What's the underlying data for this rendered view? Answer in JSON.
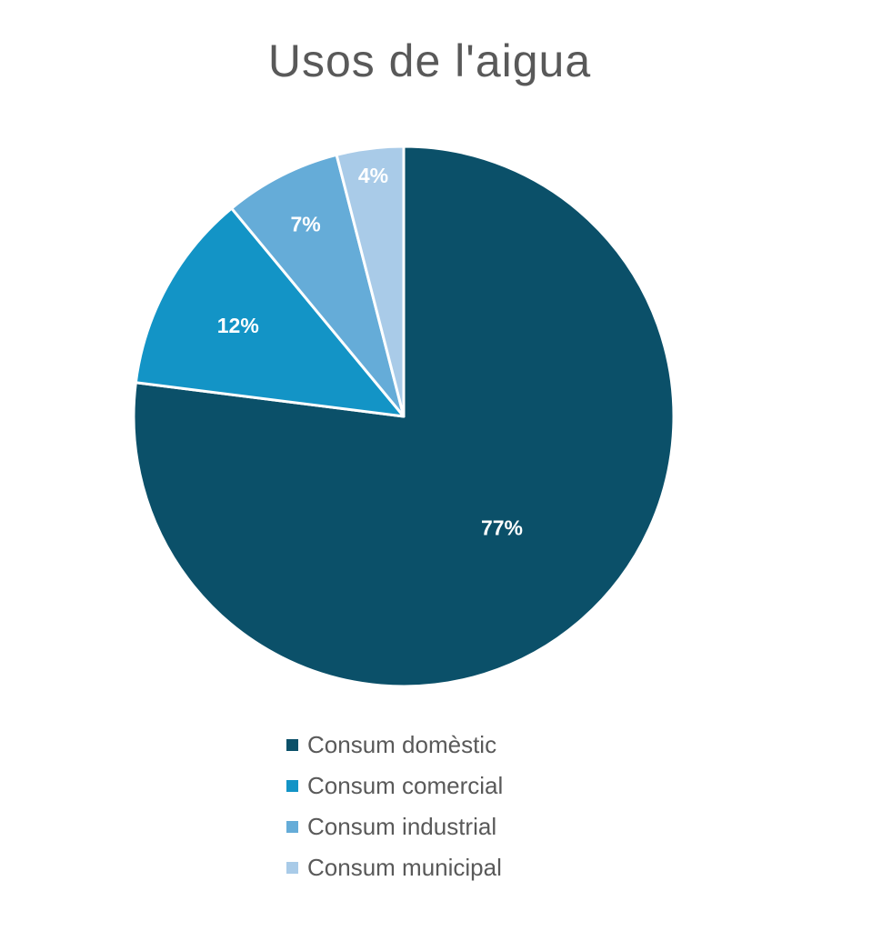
{
  "chart_data": {
    "type": "pie",
    "title": "Usos de l'aigua",
    "categories": [
      "Consum domèstic",
      "Consum comercial",
      "Consum industrial",
      "Consum municipal"
    ],
    "values": [
      77,
      12,
      7,
      4
    ],
    "labels": [
      "77%",
      "12%",
      "7%",
      "4%"
    ],
    "colors": [
      "#0b5069",
      "#1394c6",
      "#65acd8",
      "#a9cbe8"
    ],
    "legend_position": "bottom",
    "start_angle": "12 o'clock",
    "direction": "clockwise"
  }
}
